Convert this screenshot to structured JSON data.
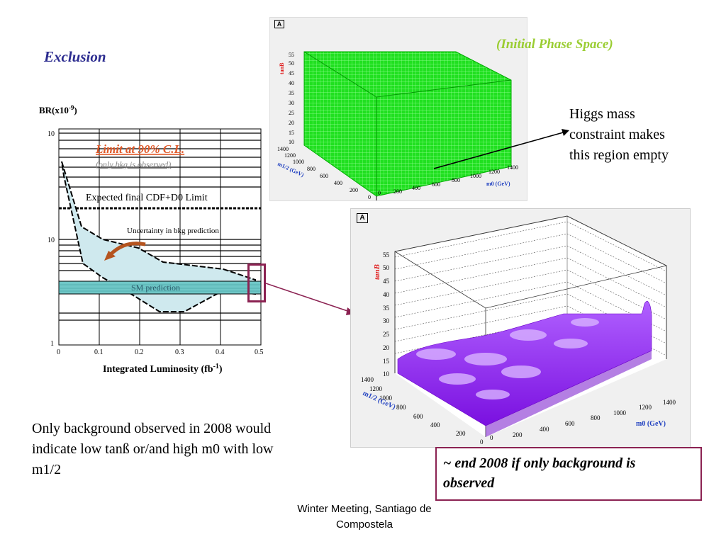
{
  "slide": {
    "heading": "Exclusion",
    "top_plot_caption": "(Initial Phase Space)",
    "higgs_note": [
      "Higgs mass",
      "constraint makes",
      "this region empty"
    ],
    "summary": [
      "Only background observed in 2008 would",
      "indicate low tanß or/and high m0 with low",
      "m1/2"
    ],
    "callout": [
      "~ end 2008 if only background is",
      "observed"
    ],
    "footer": [
      "Winter Meeting, Santiago de",
      "Compostela"
    ],
    "colors": {
      "heading": "#2b2b8f",
      "caption": "#9acd32",
      "callout_border": "#8b2252",
      "connector": "#8b2252"
    }
  },
  "left_chart": {
    "ylabel": "BR(x10",
    "ylabel_sup": "-9",
    "ylabel_end": ")",
    "xlabel": "Integrated Luminosity (fb",
    "xlabel_sup": "-1",
    "xlabel_end": ")",
    "limit_title": "Limit at 90% C.L.",
    "limit_sub": "(only bkg is observed)",
    "expected": "Expected final CDF+D0 Limit",
    "uncertainty": "Uncertainty in bkg prediction",
    "sm": "SM prediction",
    "yticks": [
      "10",
      "10",
      "1"
    ],
    "xticks": [
      "0",
      "0.1",
      "0.2",
      "0.3",
      "0.4",
      "0.5"
    ]
  },
  "chart_data": [
    {
      "type": "line",
      "title": "",
      "xlabel": "Integrated Luminosity (fb-1)",
      "ylabel": "BR(x10-9)",
      "xlim": [
        0,
        0.5
      ],
      "ylim": [
        1,
        100
      ],
      "log_y": true,
      "series": [
        {
          "name": "",
          "x": [
            0.01,
            0.05,
            0.1,
            0.2,
            0.26,
            0.4,
            0.47
          ],
          "y": [
            55,
            10,
            9,
            7,
            5.5,
            5,
            4
          ]
        },
        {
          "name": "",
          "x": [
            0.01,
            0.06,
            0.1,
            0.25,
            0.4,
            0.47
          ],
          "y": [
            40,
            7,
            5.5,
            2.4,
            2.4,
            2.8
          ]
        }
      ],
      "expected_limit": 18
    },
    {
      "type": "3d-box",
      "title": "(Initial Phase Space)",
      "xlabel": "m0 (GeV)",
      "ylabel": "m1/2 (GeV)",
      "zlabel": "tanB",
      "x_ticks": [
        "0",
        "200",
        "400",
        "600",
        "800",
        "1000",
        "1200",
        "1400"
      ],
      "y_ticks": [
        "1400",
        "1200",
        "1000",
        "800",
        "600",
        "400",
        "200",
        "0"
      ],
      "z_ticks": [
        "10",
        "15",
        "20",
        "25",
        "30",
        "35",
        "40",
        "45",
        "50",
        "55"
      ],
      "panel_label": "A"
    },
    {
      "type": "3d-surface",
      "title": "",
      "xlabel": "m0 (GeV)",
      "ylabel": "m1/2 (GeV)",
      "zlabel": "tanB",
      "x_ticks": [
        "0",
        "200",
        "400",
        "600",
        "800",
        "1000",
        "1200",
        "1400"
      ],
      "y_ticks": [
        "1400",
        "1200",
        "1000",
        "800",
        "600",
        "400",
        "200",
        "0"
      ],
      "z_ticks": [
        "10",
        "15",
        "20",
        "25",
        "30",
        "35",
        "40",
        "45",
        "50",
        "55"
      ],
      "panel_label": "A"
    }
  ]
}
